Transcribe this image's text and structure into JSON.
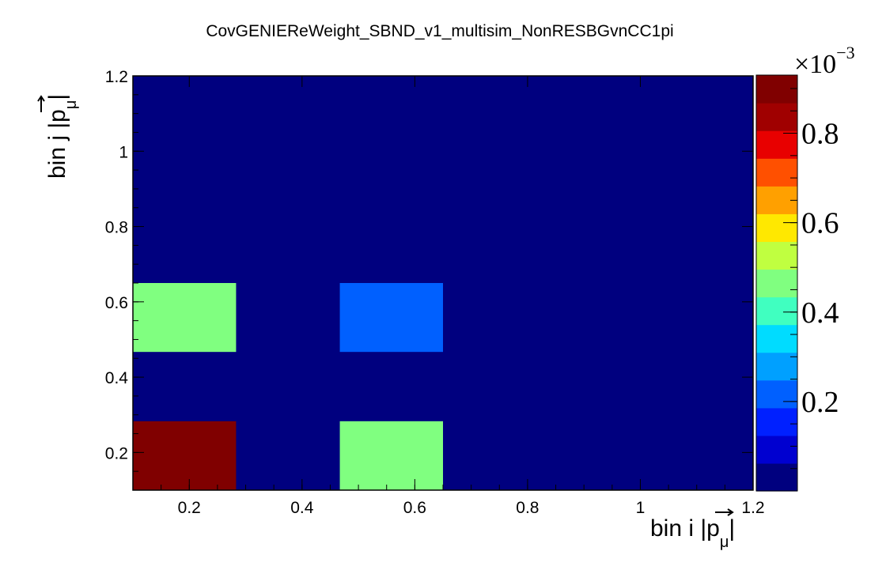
{
  "chart_data": {
    "type": "heatmap",
    "title": "CovGENIEReWeight_SBND_v1_multisim_NonRESBGvnCC1pi",
    "xlabel": {
      "main": "bin i |",
      "p": "p",
      "mu": "μ",
      "close": "|"
    },
    "ylabel": {
      "main": "bin j |",
      "p": "p",
      "mu": "μ",
      "close": "|"
    },
    "xlim": [
      0.1,
      1.2
    ],
    "ylim": [
      0.1,
      1.2
    ],
    "x_edges": [
      0.1,
      0.283,
      0.467,
      0.65,
      0.833,
      1.017,
      1.2
    ],
    "y_edges": [
      0.1,
      0.283,
      0.467,
      0.65,
      0.833,
      1.017,
      1.2
    ],
    "x_ticks": [
      {
        "v": 0.2,
        "label": "0.2"
      },
      {
        "v": 0.4,
        "label": "0.4"
      },
      {
        "v": 0.6,
        "label": "0.6"
      },
      {
        "v": 0.8,
        "label": "0.8"
      },
      {
        "v": 1.0,
        "label": "1"
      },
      {
        "v": 1.2,
        "label": "1.2"
      }
    ],
    "y_ticks": [
      {
        "v": 0.2,
        "label": "0.2"
      },
      {
        "v": 0.4,
        "label": "0.4"
      },
      {
        "v": 0.6,
        "label": "0.6"
      },
      {
        "v": 0.8,
        "label": "0.8"
      },
      {
        "v": 1.0,
        "label": "1"
      },
      {
        "v": 1.2,
        "label": "1.2"
      }
    ],
    "cells": [
      {
        "i": 0,
        "j": 0,
        "value": 0.00093
      },
      {
        "i": 2,
        "j": 0,
        "value": 0.00045
      },
      {
        "i": 0,
        "j": 2,
        "value": 0.00045
      },
      {
        "i": 2,
        "j": 2,
        "value": 0.00021
      }
    ],
    "zlim": [
      0.0,
      0.00093
    ],
    "colorbar": {
      "multiplier": {
        "base": "×10",
        "exp": "−3"
      },
      "ticks": [
        {
          "v": 0.0002,
          "label": "0.2"
        },
        {
          "v": 0.0004,
          "label": "0.4"
        },
        {
          "v": 0.0006,
          "label": "0.6"
        },
        {
          "v": 0.0008,
          "label": "0.8"
        }
      ]
    },
    "palette": [
      "#00007f",
      "#0000d0",
      "#0020ff",
      "#0060ff",
      "#00a0ff",
      "#00dcff",
      "#40ffc0",
      "#80ff80",
      "#c0ff40",
      "#ffe800",
      "#ffa000",
      "#ff5000",
      "#e80000",
      "#a00000",
      "#800000"
    ],
    "grid": false,
    "legend": "none"
  }
}
